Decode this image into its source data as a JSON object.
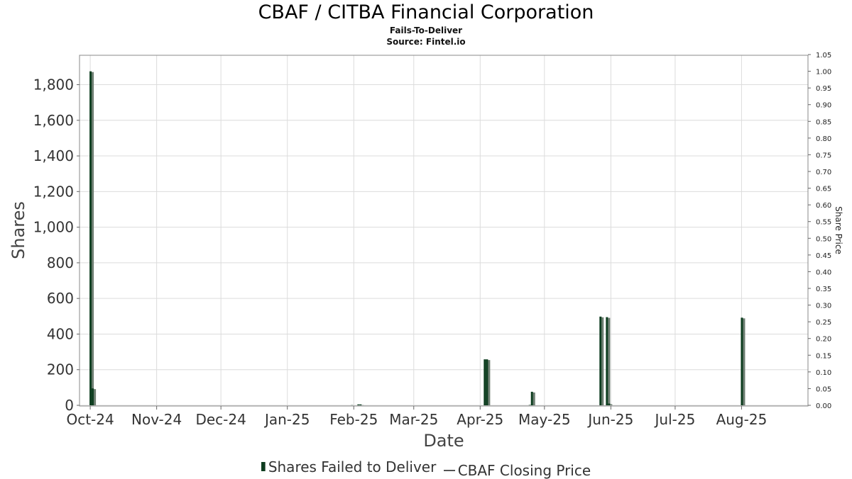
{
  "header": {
    "title": "CBAF / CITBA Financial Corporation",
    "subtitle": "Fails-To-Deliver",
    "source": "Source: Fintel.io"
  },
  "legend": {
    "bars_label": "Shares Failed to Deliver",
    "line_label": "CBAF Closing Price"
  },
  "colors": {
    "bar": "#0d3d1f",
    "bar_shadow": "#6d7d71",
    "grid": "#dcdcdc",
    "frame": "#888888"
  },
  "chart_data": {
    "type": "bar",
    "title": "CBAF / CITBA Financial Corporation",
    "subtitle": "Fails-To-Deliver",
    "xlabel": "Date",
    "ylabel": "Shares",
    "y2label": "Share Price",
    "x_ticks": [
      "Oct-24",
      "Nov-24",
      "Dec-24",
      "Jan-25",
      "Feb-25",
      "Mar-25",
      "Apr-25",
      "May-25",
      "Jun-25",
      "Jul-25",
      "Aug-25"
    ],
    "x_range": [
      "2024-09-26",
      "2025-09-01"
    ],
    "ylim": [
      0,
      1970
    ],
    "y_ticks": [
      0,
      200,
      400,
      600,
      800,
      1000,
      1200,
      1400,
      1600,
      1800
    ],
    "y_tick_labels": [
      "0",
      "200",
      "400",
      "600",
      "800",
      "1,000",
      "1,200",
      "1,400",
      "1,600",
      "1,800"
    ],
    "y2lim": [
      0,
      1.05
    ],
    "y2_ticks": [
      "0.00",
      "0.05",
      "0.10",
      "0.15",
      "0.20",
      "0.25",
      "0.30",
      "0.35",
      "0.40",
      "0.45",
      "0.50",
      "0.55",
      "0.60",
      "0.65",
      "0.70",
      "0.75",
      "0.80",
      "0.85",
      "0.90",
      "0.95",
      "1.00",
      "1.05"
    ],
    "grid": true,
    "legend_position": "bottom",
    "series": [
      {
        "name": "Shares Failed to Deliver",
        "type": "bar",
        "points": [
          {
            "date": "2024-10-01",
            "value": 1875
          },
          {
            "date": "2024-10-02",
            "value": 95
          },
          {
            "date": "2025-01-31",
            "value": 1
          },
          {
            "date": "2025-02-03",
            "value": 5
          },
          {
            "date": "2025-02-04",
            "value": 5
          },
          {
            "date": "2025-04-03",
            "value": 258
          },
          {
            "date": "2025-04-04",
            "value": 258
          },
          {
            "date": "2025-04-24",
            "value": 2
          },
          {
            "date": "2025-04-25",
            "value": 76
          },
          {
            "date": "2025-05-27",
            "value": 498
          },
          {
            "date": "2025-05-30",
            "value": 495
          },
          {
            "date": "2025-05-31",
            "value": 10
          },
          {
            "date": "2025-08-01",
            "value": 492
          }
        ]
      },
      {
        "name": "CBAF Closing Price",
        "type": "line",
        "points": []
      }
    ]
  }
}
